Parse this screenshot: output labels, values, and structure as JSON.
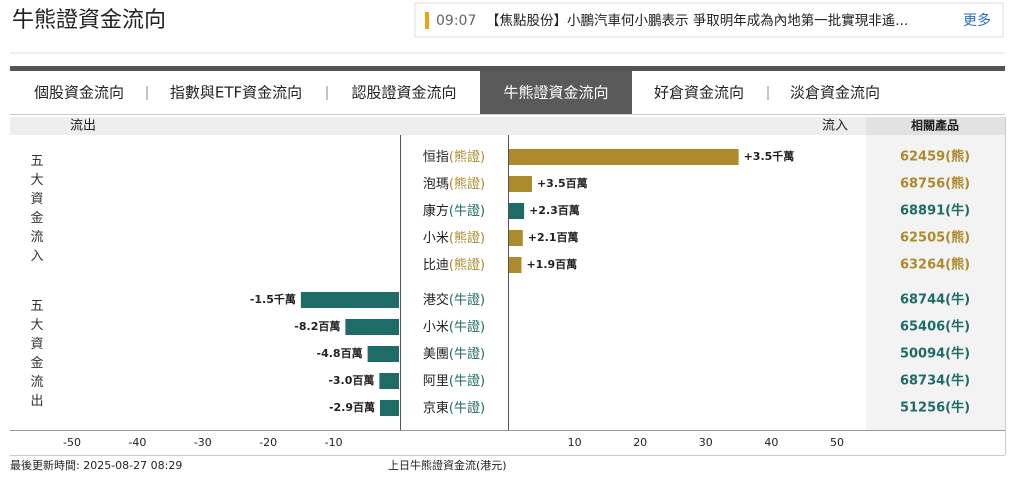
{
  "header": {
    "title": "牛熊證資金流向"
  },
  "news": {
    "time": "09:07",
    "text": "【焦點股份】小鵬汽車何小鵬表示 爭取明年成為內地第一批實現非遙...",
    "more": "更多"
  },
  "tabs": [
    "個股資金流向",
    "指數與ETF資金流向",
    "認股證資金流向",
    "牛熊證資金流向",
    "好倉資金流向",
    "淡倉資金流向"
  ],
  "active_tab": 3,
  "chart_data": {
    "type": "diverging-bar",
    "outflow_label": "流出",
    "inflow_label": "流入",
    "product_header": "相關產品",
    "group_labels": [
      "五大資金流入",
      "五大資金流出"
    ],
    "categories": [
      "恒指",
      "泡瑪",
      "康方",
      "小米",
      "比迪",
      "港交",
      "小米",
      "美團",
      "阿里",
      "京東"
    ],
    "kinds": [
      "(熊證)",
      "(熊證)",
      "(牛證)",
      "(熊證)",
      "(熊證)",
      "(牛證)",
      "(牛證)",
      "(牛證)",
      "(牛證)",
      "(牛證)"
    ],
    "colors": [
      "#ad8a2c",
      "#ad8a2c",
      "#1f6b68",
      "#ad8a2c",
      "#ad8a2c",
      "#1f6b68",
      "#1f6b68",
      "#1f6b68",
      "#1f6b68",
      "#1f6b68"
    ],
    "values": [
      35,
      3.5,
      2.3,
      2.1,
      1.9,
      -15,
      -8.2,
      -4.8,
      -3.0,
      -2.9
    ],
    "value_labels": [
      "+3.5千萬",
      "+3.5百萬",
      "+2.3百萬",
      "+2.1百萬",
      "+1.9百萬",
      "-1.5千萬",
      "-8.2百萬",
      "-4.8百萬",
      "-3.0百萬",
      "-2.9百萬"
    ],
    "products": [
      "62459(熊)",
      "68756(熊)",
      "68891(牛)",
      "62505(熊)",
      "63264(熊)",
      "68744(牛)",
      "65406(牛)",
      "50094(牛)",
      "68734(牛)",
      "51256(牛)"
    ],
    "xlim": [
      -50,
      50
    ],
    "xticks": [
      -50,
      -40,
      -30,
      -20,
      -10,
      10,
      20,
      30,
      40,
      50
    ],
    "footer_left": "最後更新時間: 2025-08-27 08:29",
    "footer_center": "上日牛熊證資金流(港元)"
  }
}
